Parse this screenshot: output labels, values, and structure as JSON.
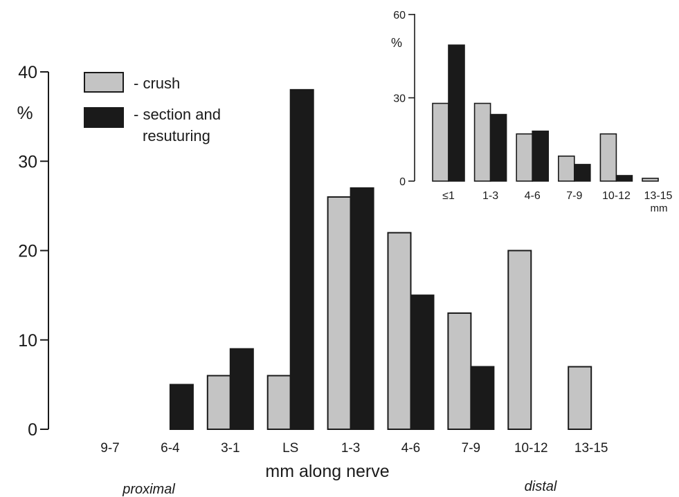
{
  "colors": {
    "crush": "#c4c4c4",
    "section": "#1a1a1a",
    "axis": "#1a1a1a",
    "background": "#ffffff"
  },
  "legend": {
    "crush_label": "- crush",
    "section_label_line1": "- section and",
    "section_label_line2": "resuturing"
  },
  "notes": {
    "proximal": "proximal",
    "distal": "distal"
  },
  "chart_data": [
    {
      "type": "bar",
      "title": "",
      "xlabel": "mm along nerve",
      "ylabel": "%",
      "ylim": [
        0,
        40
      ],
      "yticks": [
        "0",
        "10",
        "20",
        "30",
        "40"
      ],
      "categories": [
        "9-7",
        "6-4",
        "3-1",
        "LS",
        "1-3",
        "4-6",
        "7-9",
        "10-12",
        "13-15"
      ],
      "series": [
        {
          "name": "crush",
          "values": [
            0,
            0,
            6,
            6,
            26,
            22,
            13,
            20,
            7
          ]
        },
        {
          "name": "section and resuturing",
          "values": [
            0,
            5,
            9,
            38,
            27,
            15,
            7,
            0,
            0
          ]
        }
      ],
      "legend_position": "top-left",
      "grid": false
    },
    {
      "type": "bar",
      "title": "",
      "xlabel": "mm",
      "ylabel": "%",
      "ylim": [
        0,
        60
      ],
      "yticks": [
        "0",
        "30",
        "60"
      ],
      "categories": [
        "≤1",
        "1-3",
        "4-6",
        "7-9",
        "10-12",
        "13-15"
      ],
      "series": [
        {
          "name": "crush",
          "values": [
            28,
            28,
            17,
            9,
            17,
            1
          ]
        },
        {
          "name": "section and resuturing",
          "values": [
            49,
            24,
            18,
            6,
            2,
            0
          ]
        }
      ],
      "grid": false
    }
  ]
}
